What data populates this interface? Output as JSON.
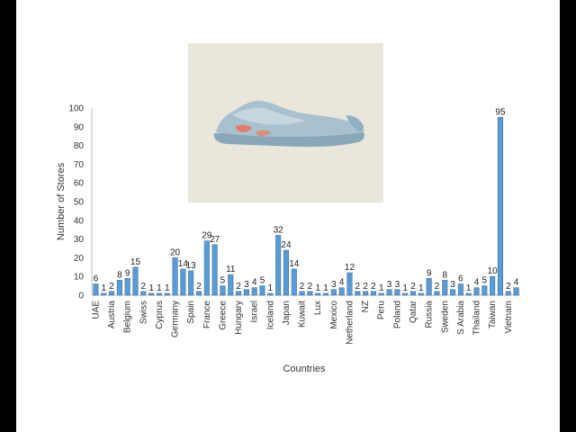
{
  "colors": {
    "frame": "#000000",
    "slide_background": "#ffffff",
    "photo_background": "#e9e7dc",
    "bar_fill": "#5b9bd5",
    "bar_stroke": "#41719c",
    "shoe_body": "#9fb9c8",
    "shoe_accent": "#e0806a",
    "shoe_sole": "#8aa7b8"
  },
  "image": {
    "subject": "sneaker-photo",
    "icon": "shoe-icon"
  },
  "chart_data": {
    "type": "bar",
    "title": "",
    "xlabel": "Countries",
    "ylabel": "Number of Stores",
    "ylim": [
      0,
      100
    ],
    "yticks": [
      0,
      10,
      20,
      30,
      40,
      50,
      60,
      70,
      80,
      90,
      100
    ],
    "grid": false,
    "legend": "none",
    "tick_labels": [
      "UAE",
      "Austria",
      "Belgium",
      "Swiss",
      "Cyprus",
      "Germany",
      "Spain",
      "France",
      "Greece",
      "Hungary",
      "Israel",
      "Iceland",
      "Japan",
      "Kuwait",
      "Lux",
      "Mexico",
      "Netherland",
      "NZ",
      "Peru",
      "Poland",
      "Qatar",
      "Russia",
      "Sweden",
      "S Arabia",
      "Thailand",
      "Taiwan",
      "Vietnam"
    ],
    "values": [
      6,
      1,
      2,
      8,
      9,
      15,
      2,
      1,
      1,
      1,
      20,
      14,
      13,
      2,
      29,
      27,
      5,
      11,
      2,
      3,
      4,
      5,
      1,
      32,
      24,
      14,
      2,
      2,
      1,
      1,
      3,
      4,
      12,
      2,
      2,
      2,
      1,
      3,
      3,
      1,
      2,
      1,
      9,
      2,
      8,
      3,
      6,
      1,
      4,
      5,
      10,
      95,
      2,
      4
    ]
  }
}
